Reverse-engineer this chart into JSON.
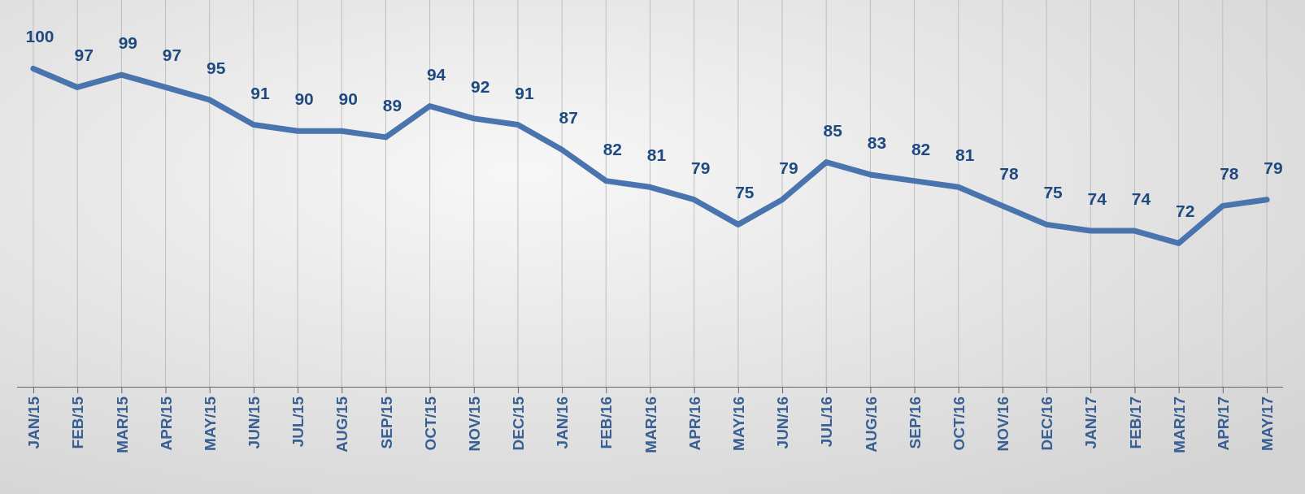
{
  "chart_data": {
    "type": "line",
    "categories": [
      "JAN/15",
      "FEB/15",
      "MAR/15",
      "APR/15",
      "MAY/15",
      "JUN/15",
      "JUL/15",
      "AUG/15",
      "SEP/15",
      "OCT/15",
      "NOV/15",
      "DEC/15",
      "JAN/16",
      "FEB/16",
      "MAR/16",
      "APR/16",
      "MAY/16",
      "JUN/16",
      "JUL/16",
      "AUG/16",
      "SEP/16",
      "OCT/16",
      "NOV/16",
      "DEC/16",
      "JAN/17",
      "FEB/17",
      "MAR/17",
      "APR/17",
      "MAY/17"
    ],
    "series": [
      {
        "color": "#4a74ad",
        "values": [
          100,
          97,
          99,
          97,
          95,
          91,
          90,
          90,
          89,
          94,
          92,
          91,
          87,
          82,
          81,
          79,
          75,
          79,
          85,
          83,
          82,
          81,
          78,
          75,
          74,
          74,
          72,
          78,
          79
        ]
      }
    ],
    "ylim": [
      49,
      111
    ],
    "tick_labels": "x",
    "grid": "x",
    "data_labels": true,
    "marker": "none",
    "line_style": "solid"
  }
}
